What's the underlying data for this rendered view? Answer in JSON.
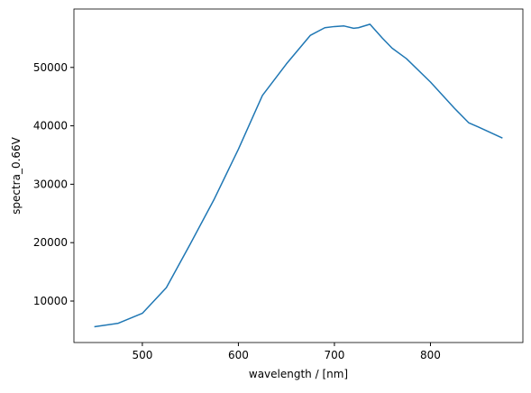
{
  "chart_data": {
    "type": "line",
    "xlabel": "wavelength / [nm]",
    "ylabel": "spectra_0.66V",
    "x": [
      450,
      475,
      500,
      525,
      550,
      575,
      600,
      625,
      650,
      675,
      690,
      700,
      710,
      720,
      725,
      737,
      750,
      760,
      775,
      800,
      825,
      840,
      850,
      875
    ],
    "series": [
      {
        "color": "#1f77b4",
        "values": [
          5600,
          6200,
          7900,
          12300,
          19800,
          27500,
          36000,
          45200,
          50600,
          55500,
          56800,
          57000,
          57100,
          56700,
          56800,
          57400,
          55000,
          53300,
          51500,
          47500,
          43000,
          40500,
          39800,
          37900
        ]
      }
    ],
    "xlim": [
      428.75,
      896.25
    ],
    "xticks": [
      500,
      600,
      700,
      800
    ],
    "ylim": [
      2900,
      60000
    ],
    "yticks": [
      10000,
      20000,
      30000,
      40000,
      50000
    ]
  }
}
